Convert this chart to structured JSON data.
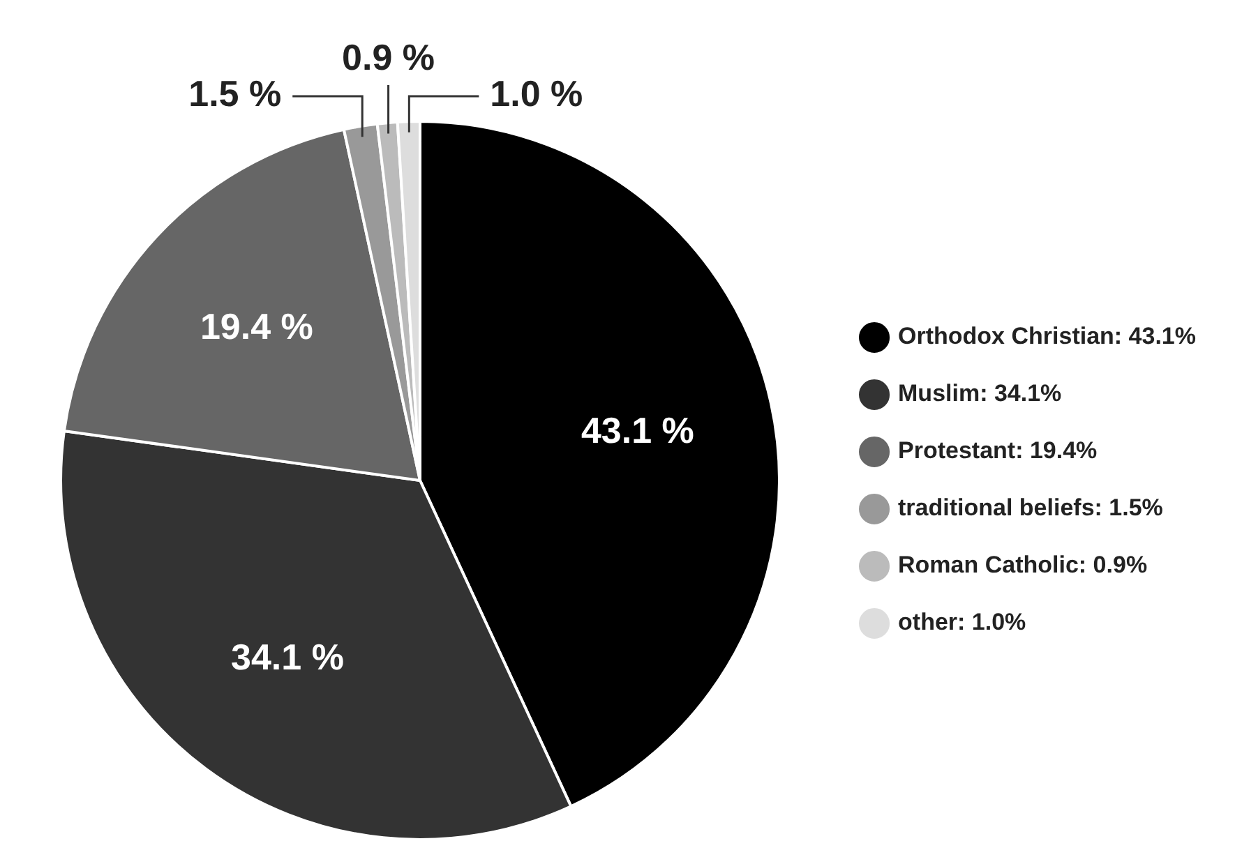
{
  "chart_data": {
    "type": "pie",
    "categories": [
      "Orthodox Christian: 43.1%",
      "Muslim: 34.1%",
      "Protestant: 19.4%",
      "traditional beliefs: 1.5%",
      "Roman Catholic: 0.9%",
      "other: 1.0%"
    ],
    "values": [
      43.1,
      34.1,
      19.4,
      1.5,
      0.9,
      1.0
    ],
    "colors": [
      "#000000",
      "#333333",
      "#666666",
      "#999999",
      "#bbbbbb",
      "#dddddd"
    ],
    "value_labels": [
      "43.1 %",
      "34.1 %",
      "19.4 %",
      "1.5 %",
      "0.9 %",
      "1.0 %"
    ],
    "legend": "right"
  }
}
